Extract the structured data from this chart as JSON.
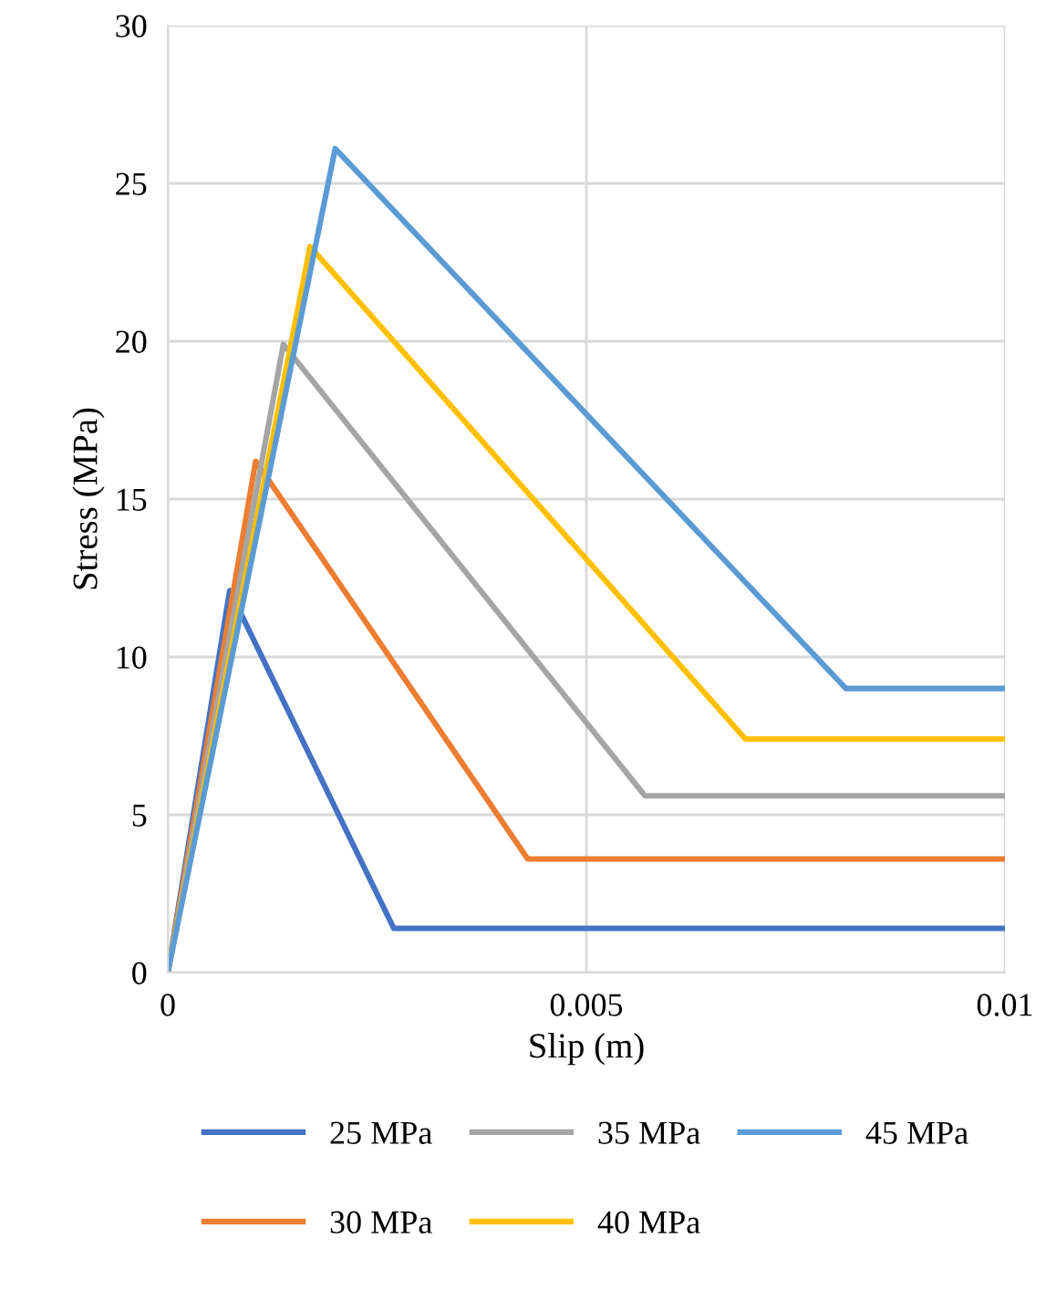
{
  "chart_data": {
    "type": "line",
    "xlabel": "Slip (m)",
    "ylabel": "Stress (MPa)",
    "xlim": [
      0,
      0.01
    ],
    "xticks": [
      0,
      0.005,
      0.01
    ],
    "ylim": [
      0,
      30
    ],
    "yticks": [
      0,
      5,
      10,
      15,
      20,
      25,
      30
    ],
    "grid": true,
    "legend": "bottom",
    "line_style": "solid",
    "marker": "none",
    "series": [
      {
        "name": "25 MPa",
        "color": "#4472c4",
        "x": [
          0,
          0.00074,
          0.0027,
          0.01
        ],
        "values": [
          0,
          12.1,
          1.4,
          1.4
        ]
      },
      {
        "name": "30 MPa",
        "color": "#ed7d31",
        "x": [
          0,
          0.00105,
          0.0043,
          0.01
        ],
        "values": [
          0,
          16.2,
          3.6,
          3.6
        ]
      },
      {
        "name": "35 MPa",
        "color": "#a5a5a5",
        "x": [
          0,
          0.00138,
          0.0057,
          0.01
        ],
        "values": [
          0,
          19.9,
          5.6,
          5.6
        ]
      },
      {
        "name": "40 MPa",
        "color": "#ffc000",
        "x": [
          0,
          0.0017,
          0.0069,
          0.01
        ],
        "values": [
          0,
          23.0,
          7.4,
          7.4
        ]
      },
      {
        "name": "45 MPa",
        "color": "#5b9bd5",
        "x": [
          0,
          0.002,
          0.0081,
          0.01
        ],
        "values": [
          0,
          26.1,
          9.0,
          9.0
        ]
      }
    ]
  }
}
